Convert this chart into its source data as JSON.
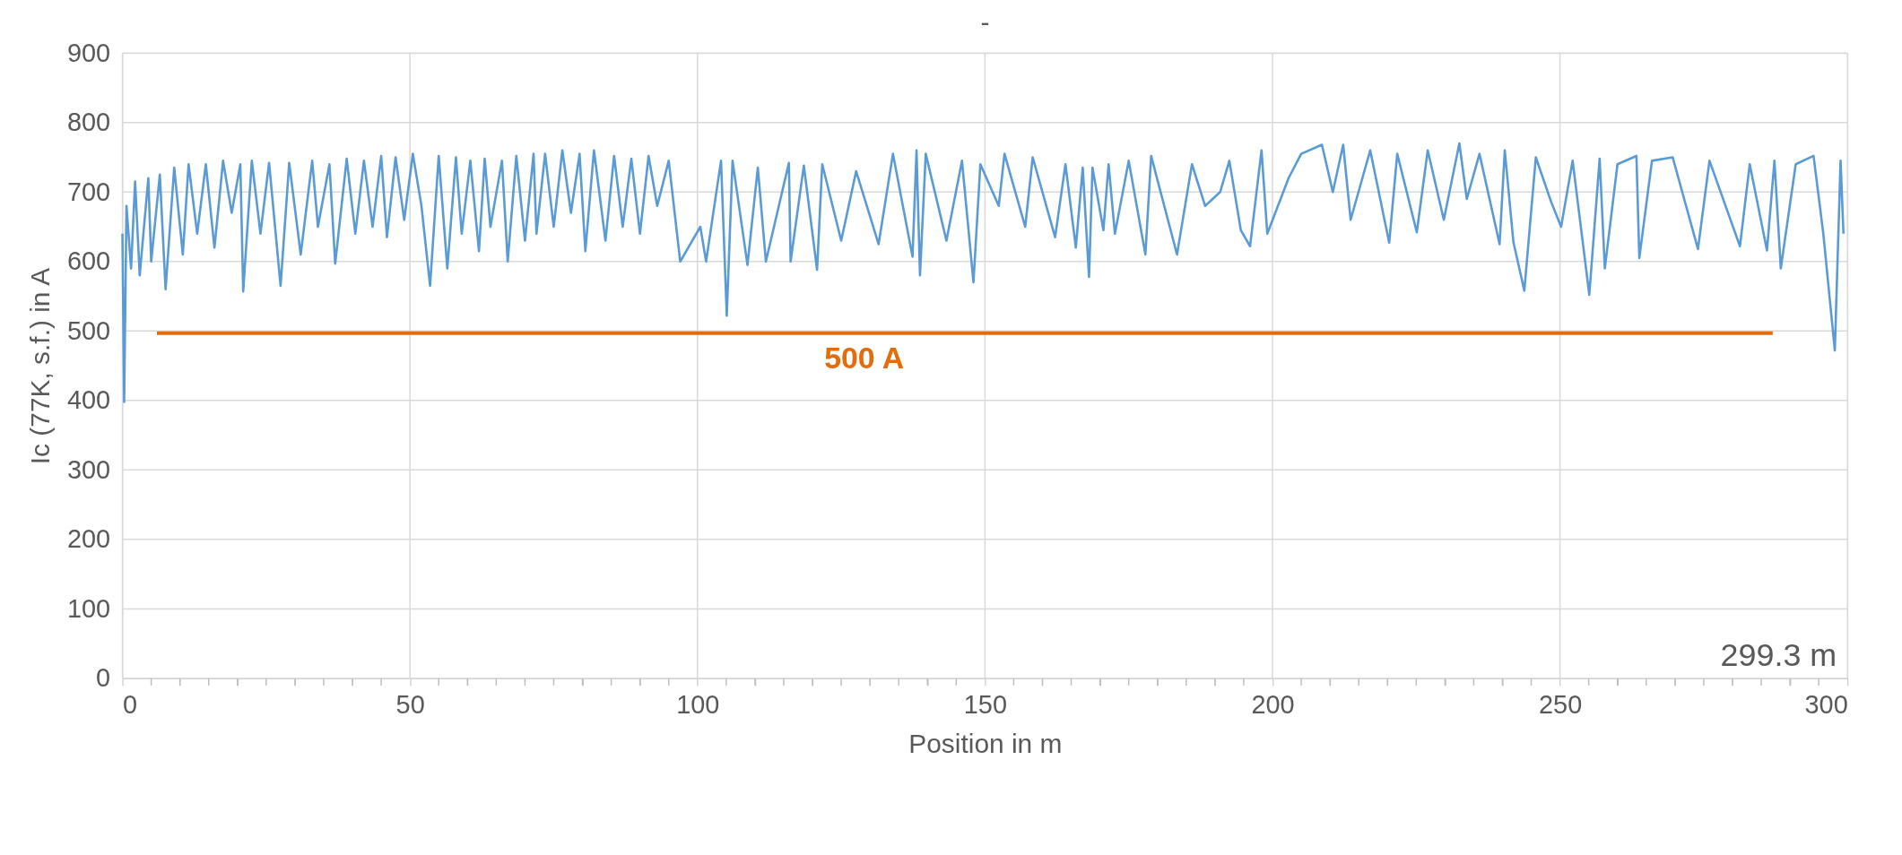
{
  "chart_data": {
    "type": "line",
    "title": "-",
    "xlabel": "Position in m",
    "ylabel": "Ic (77K, s.f.) in A",
    "xlim": [
      0,
      300
    ],
    "ylim": [
      0,
      900
    ],
    "xticks": [
      0,
      {
        "value": 5,
        "label": null
      },
      {
        "value": 10,
        "label": null
      },
      {
        "value": 15,
        "label": null
      },
      {
        "value": 20,
        "label": null
      },
      {
        "value": 25,
        "label": null
      },
      {
        "value": 30,
        "label": null
      },
      {
        "value": 35,
        "label": null
      },
      {
        "value": 40,
        "label": null
      },
      {
        "value": 45,
        "label": null
      },
      50,
      {
        "value": 55,
        "label": null
      },
      {
        "value": 60,
        "label": null
      },
      {
        "value": 65,
        "label": null
      },
      {
        "value": 70,
        "label": null
      },
      {
        "value": 75,
        "label": null
      },
      {
        "value": 80,
        "label": null
      },
      {
        "value": 85,
        "label": null
      },
      {
        "value": 90,
        "label": null
      },
      {
        "value": 95,
        "label": null
      },
      100,
      {
        "value": 105,
        "label": null
      },
      {
        "value": 110,
        "label": null
      },
      {
        "value": 115,
        "label": null
      },
      {
        "value": 120,
        "label": null
      },
      {
        "value": 125,
        "label": null
      },
      {
        "value": 130,
        "label": null
      },
      {
        "value": 135,
        "label": null
      },
      {
        "value": 140,
        "label": null
      },
      {
        "value": 145,
        "label": null
      },
      150,
      {
        "value": 155,
        "label": null
      },
      {
        "value": 160,
        "label": null
      },
      {
        "value": 165,
        "label": null
      },
      {
        "value": 170,
        "label": null
      },
      {
        "value": 175,
        "label": null
      },
      {
        "value": 180,
        "label": null
      },
      {
        "value": 185,
        "label": null
      },
      {
        "value": 190,
        "label": null
      },
      {
        "value": 195,
        "label": null
      },
      200,
      {
        "value": 205,
        "label": null
      },
      {
        "value": 210,
        "label": null
      },
      {
        "value": 215,
        "label": null
      },
      {
        "value": 220,
        "label": null
      },
      {
        "value": 225,
        "label": null
      },
      {
        "value": 230,
        "label": null
      },
      {
        "value": 235,
        "label": null
      },
      {
        "value": 240,
        "label": null
      },
      {
        "value": 245,
        "label": null
      },
      250,
      {
        "value": 255,
        "label": null
      },
      {
        "value": 260,
        "label": null
      },
      {
        "value": 265,
        "label": null
      },
      {
        "value": 270,
        "label": null
      },
      {
        "value": 275,
        "label": null
      },
      {
        "value": 280,
        "label": null
      },
      {
        "value": 285,
        "label": null
      },
      {
        "value": 290,
        "label": null
      },
      {
        "value": 295,
        "label": null
      },
      300
    ],
    "yticks": [
      0,
      100,
      200,
      300,
      400,
      500,
      600,
      700,
      800,
      900
    ],
    "grid": true,
    "marker": "none",
    "line_style": "solid",
    "annotations": [
      "500 A",
      "299.3 m"
    ],
    "series": [
      {
        "color": "#5b9bd5",
        "x": [
          0.0,
          0.3,
          0.7,
          1.5,
          2.2,
          3.0,
          4.5,
          5.0,
          6.5,
          7.5,
          9.0,
          10.5,
          11.5,
          13,
          14.5,
          16,
          17.5,
          19,
          20.5,
          21,
          22.5,
          24,
          25.5,
          27.5,
          29,
          31,
          33,
          34,
          36,
          37,
          39,
          40.5,
          42,
          43.5,
          45,
          46,
          47.5,
          49,
          50.5,
          52,
          53.5,
          55,
          56.5,
          58,
          59,
          60.5,
          62,
          63,
          64,
          66,
          67,
          68.5,
          70,
          71.5,
          72,
          73.5,
          75,
          76.5,
          78,
          79.5,
          80.5,
          82,
          84,
          85.5,
          87,
          88.5,
          90,
          91.5,
          93,
          95,
          97,
          100.5,
          101.5,
          104.1,
          105.1,
          106.1,
          108.7,
          110.5,
          111.9,
          115.9,
          116.2,
          118.5,
          120.8,
          121.7,
          125,
          127.6,
          131.5,
          134,
          137.4,
          138.1,
          138.7,
          139.7,
          143.3,
          146,
          148.0,
          149.2,
          152.4,
          153.4,
          157.0,
          158.3,
          162.2,
          164,
          165.8,
          167,
          168.1,
          168.7,
          170.6,
          171.5,
          172.6,
          175,
          177.9,
          178.9,
          183.4,
          186,
          188.3,
          190.9,
          192.5,
          194.5,
          196.1,
          198.1,
          199.1,
          202.8,
          205,
          208.6,
          210.5,
          212.3,
          213.6,
          217,
          220.3,
          221.7,
          225.1,
          227,
          229.8,
          232.5,
          233.8,
          236,
          239.5,
          240.4,
          241.9,
          243.8,
          245.8,
          248.5,
          250.2,
          252.2,
          255.1,
          256.9,
          257.8,
          260,
          263.3,
          263.8,
          266,
          269.6,
          274.0,
          276,
          281.3,
          283,
          286.0,
          287.3,
          288.4,
          291,
          294.1,
          295.8,
          297.8,
          298.8,
          299.3
        ],
        "values": [
          640,
          398,
          680,
          590,
          715,
          580,
          720,
          600,
          725,
          560,
          735,
          610,
          740,
          640,
          740,
          620,
          745,
          670,
          740,
          557,
          745,
          640,
          742,
          565,
          742,
          610,
          745,
          650,
          740,
          597,
          748,
          640,
          745,
          650,
          752,
          635,
          750,
          660,
          755,
          680,
          565,
          752,
          590,
          750,
          640,
          745,
          615,
          748,
          650,
          745,
          600,
          752,
          630,
          755,
          640,
          755,
          650,
          760,
          670,
          755,
          615,
          760,
          630,
          752,
          650,
          748,
          640,
          752,
          680,
          745,
          600,
          650,
          600,
          745,
          522,
          745,
          595,
          735,
          600,
          742,
          600,
          738,
          588,
          740,
          630,
          730,
          625,
          755,
          607,
          760,
          580,
          755,
          630,
          745,
          570,
          740,
          680,
          755,
          650,
          750,
          635,
          740,
          620,
          735,
          578,
          735,
          645,
          740,
          640,
          745,
          610,
          752,
          610,
          740,
          680,
          700,
          745,
          645,
          622,
          760,
          640,
          720,
          755,
          768,
          700,
          768,
          660,
          760,
          627,
          755,
          642,
          760,
          660,
          770,
          690,
          755,
          625,
          760,
          628,
          558,
          750,
          685,
          650,
          745,
          552,
          748,
          590,
          740,
          752,
          605,
          745,
          750,
          618,
          745,
          622,
          740,
          616,
          745,
          590,
          740,
          752,
          640,
          472,
          745,
          640
        ]
      },
      {
        "color": "#e46c0a",
        "x": [
          6,
          287
        ],
        "values": [
          497,
          497
        ]
      }
    ]
  }
}
